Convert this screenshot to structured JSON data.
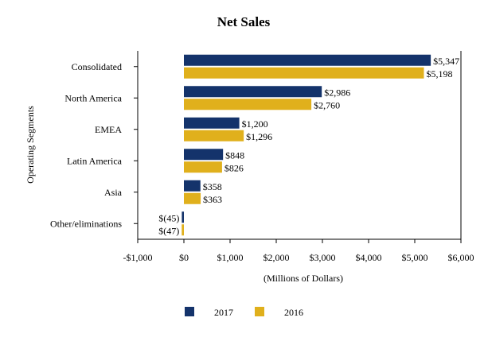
{
  "chart_data": {
    "type": "bar",
    "orientation": "horizontal",
    "title": "Net Sales",
    "xlabel": "(Millions of Dollars)",
    "ylabel": "Operating Segments",
    "xlim": [
      -1000,
      6000
    ],
    "xticks": [
      -1000,
      0,
      1000,
      2000,
      3000,
      4000,
      5000,
      6000
    ],
    "xtick_labels": [
      "-$1,000",
      "$0",
      "$1,000",
      "$2,000",
      "$3,000",
      "$4,000",
      "$5,000",
      "$6,000"
    ],
    "categories": [
      "Consolidated",
      "North America",
      "EMEA",
      "Latin America",
      "Asia",
      "Other/eliminations"
    ],
    "series": [
      {
        "name": "2017",
        "color": "#14336b",
        "values": [
          5347,
          2986,
          1200,
          848,
          358,
          -45
        ],
        "labels": [
          "$5,347",
          "$2,986",
          "$1,200",
          "$848",
          "$358",
          "$(45)"
        ]
      },
      {
        "name": "2016",
        "color": "#e0b01c",
        "values": [
          5198,
          2760,
          1296,
          826,
          363,
          -47
        ],
        "labels": [
          "$5,198",
          "$2,760",
          "$1,296",
          "$826",
          "$363",
          "$(47)"
        ]
      }
    ],
    "grid": false,
    "legend_position": "bottom"
  }
}
